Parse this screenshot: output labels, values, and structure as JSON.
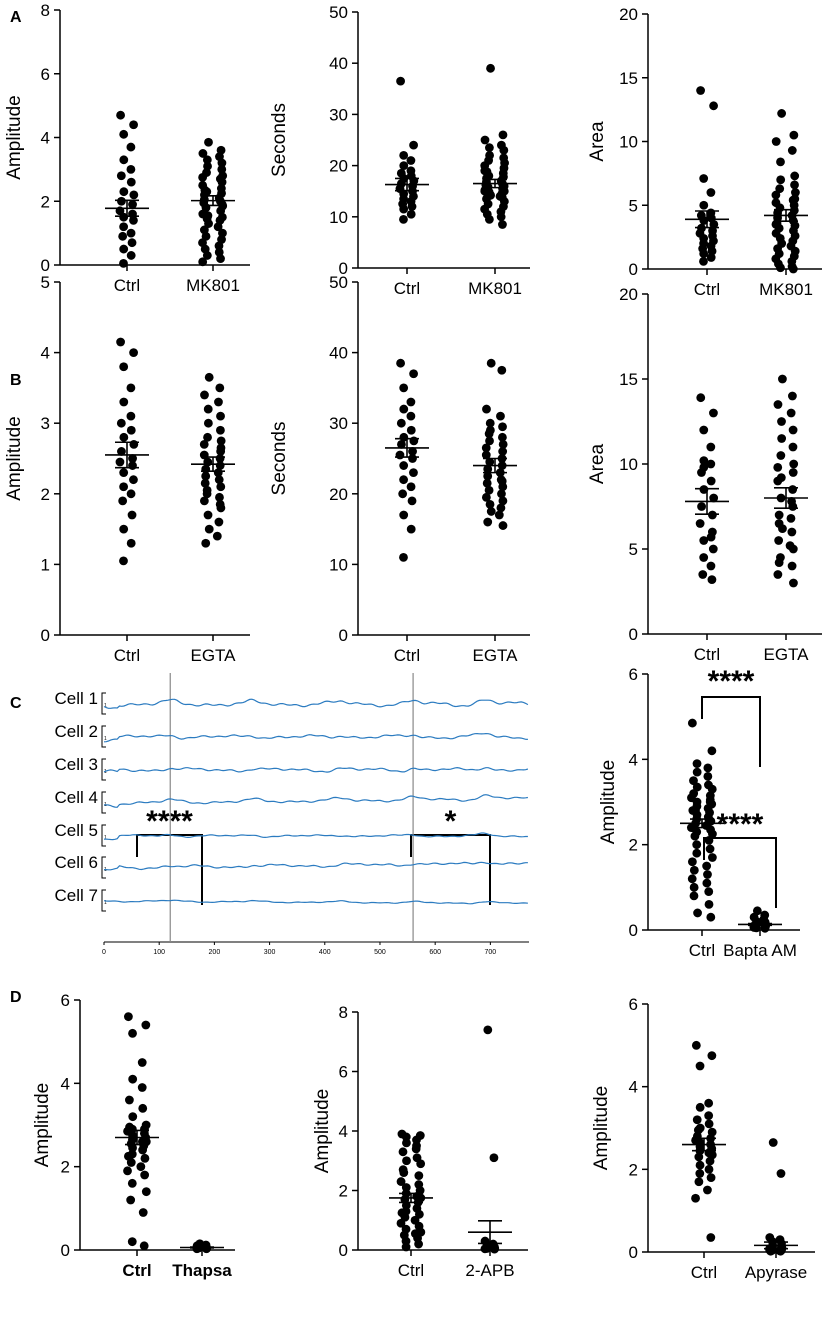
{
  "chart_data": [
    {
      "id": "A1",
      "panel_label": "A",
      "type": "scatter",
      "ylabel": "Amplitude",
      "ylim": [
        0,
        8
      ],
      "yticks": [
        0,
        2,
        4,
        6,
        8
      ],
      "categories": [
        "Ctrl",
        "MK801"
      ],
      "series": [
        {
          "name": "Ctrl",
          "mean": 1.78,
          "sem": 0.25,
          "values": [
            4.7,
            4.4,
            4.1,
            3.7,
            3.3,
            3.0,
            2.8,
            2.6,
            2.3,
            2.2,
            2.0,
            1.9,
            1.7,
            1.6,
            1.5,
            1.4,
            1.2,
            1.0,
            0.9,
            0.7,
            0.5,
            0.3,
            0.05
          ]
        },
        {
          "name": "MK801",
          "mean": 2.02,
          "sem": 0.15,
          "values": [
            3.85,
            3.6,
            3.5,
            3.4,
            3.3,
            3.2,
            3.1,
            3.0,
            2.9,
            2.8,
            2.75,
            2.6,
            2.5,
            2.4,
            2.3,
            2.25,
            2.2,
            2.1,
            2.05,
            2.0,
            1.95,
            1.9,
            1.8,
            1.7,
            1.6,
            1.5,
            1.45,
            1.4,
            1.3,
            1.2,
            1.1,
            1.0,
            0.9,
            0.8,
            0.7,
            0.6,
            0.5,
            0.4,
            0.3,
            0.2,
            0.1,
            2.7,
            2.35,
            1.85,
            1.55
          ]
        }
      ]
    },
    {
      "id": "A2",
      "panel_label": "",
      "type": "scatter",
      "ylabel": "Seconds",
      "ylim": [
        0,
        50
      ],
      "yticks": [
        0,
        10,
        20,
        30,
        40,
        50
      ],
      "categories": [
        "Ctrl",
        "MK801"
      ],
      "series": [
        {
          "name": "Ctrl",
          "mean": 16.3,
          "sem": 1.2,
          "values": [
            36.5,
            24.0,
            22.0,
            21.0,
            20.0,
            19.0,
            18.5,
            18.0,
            17.5,
            17.0,
            16.5,
            16.0,
            15.5,
            15.0,
            14.5,
            14.0,
            13.5,
            13.0,
            12.5,
            12.0,
            11.5,
            10.5,
            9.5
          ]
        },
        {
          "name": "MK801",
          "mean": 16.5,
          "sem": 0.8,
          "values": [
            39.0,
            26.0,
            25.0,
            24.0,
            23.5,
            23.0,
            22.0,
            21.5,
            21.0,
            20.5,
            20.0,
            19.5,
            19.0,
            18.5,
            18.0,
            17.8,
            17.5,
            17.0,
            16.8,
            16.5,
            16.2,
            16.0,
            15.8,
            15.5,
            15.2,
            15.0,
            14.8,
            14.5,
            14.2,
            14.0,
            13.5,
            13.0,
            12.5,
            12.0,
            11.5,
            11.0,
            10.5,
            10.0,
            9.5,
            8.5,
            15.0,
            13.8,
            18.8
          ]
        }
      ]
    },
    {
      "id": "A3",
      "panel_label": "",
      "type": "scatter",
      "ylabel": "Area",
      "ylim": [
        0,
        20
      ],
      "yticks": [
        0,
        5,
        10,
        15,
        20
      ],
      "categories": [
        "Ctrl",
        "MK801"
      ],
      "series": [
        {
          "name": "Ctrl",
          "mean": 3.9,
          "sem": 0.65,
          "values": [
            14.0,
            12.8,
            7.1,
            6.0,
            5.0,
            4.4,
            4.2,
            4.0,
            3.8,
            3.5,
            3.2,
            3.0,
            2.8,
            2.6,
            2.4,
            2.2,
            2.0,
            1.8,
            1.6,
            1.4,
            1.2,
            0.9,
            0.6
          ]
        },
        {
          "name": "MK801",
          "mean": 4.2,
          "sem": 0.45,
          "values": [
            12.2,
            10.5,
            10.0,
            9.3,
            8.4,
            7.3,
            7.0,
            6.6,
            6.3,
            6.0,
            5.8,
            5.5,
            5.2,
            5.0,
            4.8,
            4.6,
            4.4,
            4.2,
            4.0,
            3.8,
            3.6,
            3.4,
            3.2,
            3.0,
            2.8,
            2.6,
            2.4,
            2.2,
            2.0,
            1.8,
            1.6,
            1.4,
            1.2,
            1.0,
            0.8,
            0.6,
            0.4,
            0.2,
            0.1,
            0.0,
            3.5,
            5.4
          ]
        }
      ]
    },
    {
      "id": "B1",
      "panel_label": "B",
      "type": "scatter",
      "ylabel": "Amplitude",
      "ylim": [
        0,
        5
      ],
      "yticks": [
        0,
        1,
        2,
        3,
        4,
        5
      ],
      "categories": [
        "Ctrl",
        "EGTA"
      ],
      "series": [
        {
          "name": "Ctrl",
          "mean": 2.55,
          "sem": 0.18,
          "values": [
            4.15,
            4.0,
            3.8,
            3.5,
            3.3,
            3.1,
            3.0,
            2.9,
            2.8,
            2.7,
            2.6,
            2.5,
            2.45,
            2.4,
            2.3,
            2.2,
            2.1,
            2.0,
            1.9,
            1.7,
            1.5,
            1.3,
            1.05
          ]
        },
        {
          "name": "EGTA",
          "mean": 2.42,
          "sem": 0.1,
          "values": [
            3.65,
            3.5,
            3.4,
            3.3,
            3.2,
            3.1,
            3.0,
            2.9,
            2.8,
            2.75,
            2.7,
            2.6,
            2.55,
            2.5,
            2.45,
            2.4,
            2.35,
            2.3,
            2.25,
            2.2,
            2.15,
            2.1,
            2.0,
            1.95,
            1.9,
            1.8,
            1.7,
            1.6,
            1.5,
            1.4,
            1.3,
            2.65,
            2.05,
            1.85
          ]
        }
      ]
    },
    {
      "id": "B2",
      "panel_label": "",
      "type": "scatter",
      "ylabel": "Seconds",
      "ylim": [
        0,
        50
      ],
      "yticks": [
        0,
        10,
        20,
        30,
        40,
        50
      ],
      "categories": [
        "Ctrl",
        "EGTA"
      ],
      "series": [
        {
          "name": "Ctrl",
          "mean": 26.5,
          "sem": 1.3,
          "values": [
            38.5,
            37.0,
            35.0,
            33.0,
            32.0,
            31.0,
            30.0,
            29.0,
            28.0,
            27.5,
            27.0,
            26.0,
            25.5,
            25.0,
            24.0,
            23.0,
            22.0,
            21.0,
            20.0,
            19.0,
            17.0,
            15.0,
            11.0
          ]
        },
        {
          "name": "EGTA",
          "mean": 24.0,
          "sem": 1.0,
          "values": [
            38.5,
            37.5,
            32.0,
            31.0,
            30.0,
            29.5,
            29.0,
            28.0,
            27.5,
            27.0,
            26.5,
            26.0,
            25.5,
            25.0,
            24.5,
            24.0,
            23.5,
            23.0,
            22.5,
            22.0,
            21.5,
            21.0,
            20.5,
            20.0,
            19.5,
            19.0,
            18.5,
            18.0,
            17.5,
            17.0,
            16.0,
            15.5,
            28.5,
            21.8
          ]
        }
      ]
    },
    {
      "id": "B3",
      "panel_label": "",
      "type": "scatter",
      "ylabel": "Area",
      "ylim": [
        0,
        20
      ],
      "yticks": [
        0,
        5,
        10,
        15,
        20
      ],
      "categories": [
        "Ctrl",
        "EGTA"
      ],
      "series": [
        {
          "name": "Ctrl",
          "mean": 7.8,
          "sem": 0.75,
          "values": [
            13.9,
            13.0,
            12.0,
            11.0,
            10.2,
            10.0,
            9.5,
            9.0,
            8.5,
            8.0,
            7.5,
            7.0,
            6.5,
            6.0,
            5.5,
            5.0,
            4.5,
            4.0,
            3.5,
            3.2,
            9.8,
            5.7
          ]
        },
        {
          "name": "EGTA",
          "mean": 8.0,
          "sem": 0.6,
          "values": [
            15.0,
            14.0,
            13.5,
            13.0,
            12.5,
            12.0,
            11.5,
            11.0,
            10.5,
            10.0,
            9.8,
            9.5,
            9.0,
            8.5,
            8.0,
            7.5,
            7.0,
            6.8,
            6.5,
            6.0,
            5.5,
            5.0,
            4.5,
            4.0,
            3.5,
            3.0,
            9.2,
            7.8,
            6.2,
            5.2,
            4.2
          ]
        }
      ]
    },
    {
      "id": "C2",
      "panel_label": "",
      "type": "scatter",
      "ylabel": "Amplitude",
      "ylim": [
        0,
        6
      ],
      "yticks": [
        0,
        2,
        4,
        6
      ],
      "categories": [
        "Ctrl",
        "Bapta AM"
      ],
      "significance": "****",
      "series": [
        {
          "name": "Ctrl",
          "mean": 2.5,
          "sem": 0.1,
          "values": [
            4.85,
            4.2,
            3.9,
            3.8,
            3.7,
            3.6,
            3.5,
            3.4,
            3.35,
            3.3,
            3.2,
            3.15,
            3.1,
            3.05,
            3.0,
            2.95,
            2.9,
            2.85,
            2.8,
            2.75,
            2.7,
            2.65,
            2.6,
            2.55,
            2.5,
            2.45,
            2.4,
            2.35,
            2.3,
            2.25,
            2.2,
            2.1,
            2.0,
            1.9,
            1.8,
            1.7,
            1.6,
            1.5,
            1.4,
            1.3,
            1.2,
            1.1,
            1.0,
            0.9,
            0.8,
            0.6,
            0.4,
            0.3,
            2.8,
            2.6,
            2.4,
            3.0
          ]
        },
        {
          "name": "Bapta AM",
          "mean": 0.13,
          "sem": 0.02,
          "values": [
            0.45,
            0.35,
            0.3,
            0.25,
            0.2,
            0.18,
            0.15,
            0.12,
            0.1,
            0.1,
            0.08,
            0.08,
            0.06,
            0.05,
            0.05,
            0.04,
            0.12,
            0.2
          ]
        }
      ]
    },
    {
      "id": "D1",
      "panel_label": "D",
      "type": "scatter",
      "ylabel": "Amplitude",
      "ylim": [
        0,
        6
      ],
      "yticks": [
        0,
        2,
        4,
        6
      ],
      "categories": [
        "Ctrl",
        "Thapsa"
      ],
      "significance": "****",
      "bold_categories": true,
      "series": [
        {
          "name": "Ctrl",
          "mean": 2.7,
          "sem": 0.17,
          "values": [
            5.6,
            5.4,
            5.2,
            4.5,
            4.1,
            3.9,
            3.6,
            3.4,
            3.2,
            3.0,
            2.95,
            2.9,
            2.85,
            2.8,
            2.75,
            2.7,
            2.65,
            2.6,
            2.55,
            2.5,
            2.45,
            2.4,
            2.3,
            2.2,
            2.1,
            2.0,
            1.9,
            1.8,
            1.6,
            1.4,
            1.2,
            0.9,
            0.2,
            0.1,
            2.9,
            2.6,
            2.25
          ]
        },
        {
          "name": "Thapsa",
          "mean": 0.06,
          "sem": 0.01,
          "values": [
            0.15,
            0.12,
            0.1,
            0.09,
            0.08,
            0.07,
            0.06,
            0.05,
            0.05,
            0.04,
            0.03,
            0.03
          ]
        }
      ]
    },
    {
      "id": "D2",
      "panel_label": "",
      "type": "scatter",
      "ylabel": "Amplitude",
      "ylim": [
        0,
        8
      ],
      "yticks": [
        0,
        2,
        4,
        6,
        8
      ],
      "categories": [
        "Ctrl",
        "2-APB"
      ],
      "significance": "*",
      "series": [
        {
          "name": "Ctrl",
          "mean": 1.75,
          "sem": 0.15,
          "values": [
            3.9,
            3.85,
            3.8,
            3.7,
            3.6,
            3.5,
            3.3,
            3.1,
            3.0,
            2.9,
            2.7,
            2.5,
            2.3,
            2.2,
            2.1,
            2.0,
            1.9,
            1.8,
            1.7,
            1.6,
            1.5,
            1.4,
            1.3,
            1.2,
            1.1,
            1.0,
            0.9,
            0.8,
            0.7,
            0.6,
            0.5,
            0.4,
            0.3,
            0.2,
            0.1,
            1.75,
            1.25,
            0.55,
            2.6,
            3.4
          ]
        },
        {
          "name": "2-APB",
          "mean": 0.6,
          "sem": 0.38,
          "values": [
            7.4,
            3.1,
            0.3,
            0.2,
            0.15,
            0.1,
            0.1,
            0.08,
            0.05,
            0.05,
            0.04,
            0.03
          ]
        }
      ]
    },
    {
      "id": "D3",
      "panel_label": "",
      "type": "scatter",
      "ylabel": "Amplitude",
      "ylim": [
        0,
        6
      ],
      "yticks": [
        0,
        2,
        4,
        6
      ],
      "categories": [
        "Ctrl",
        "Apyrase"
      ],
      "significance": "****",
      "series": [
        {
          "name": "Ctrl",
          "mean": 2.6,
          "sem": 0.15,
          "values": [
            5.0,
            4.75,
            4.5,
            3.6,
            3.5,
            3.3,
            3.2,
            3.1,
            3.0,
            2.9,
            2.8,
            2.75,
            2.7,
            2.6,
            2.55,
            2.5,
            2.45,
            2.4,
            2.3,
            2.2,
            2.1,
            2.0,
            1.9,
            1.8,
            1.7,
            1.5,
            1.3,
            0.35,
            2.65,
            2.35,
            2.95
          ]
        },
        {
          "name": "Apyrase",
          "mean": 0.16,
          "sem": 0.08,
          "values": [
            2.65,
            1.9,
            0.35,
            0.3,
            0.25,
            0.2,
            0.15,
            0.12,
            0.1,
            0.1,
            0.08,
            0.06,
            0.05,
            0.05,
            0.04,
            0.04,
            0.03,
            0.03,
            0.02,
            0.02
          ]
        }
      ]
    },
    {
      "id": "C1",
      "panel_label": "C",
      "type": "line",
      "cells": [
        "Cell 1",
        "Cell 2",
        "Cell 3",
        "Cell 4",
        "Cell 5",
        "Cell 6",
        "Cell 7"
      ],
      "scale_label": "1",
      "xlim": [
        0,
        770
      ],
      "xticks": [
        0,
        100,
        200,
        300,
        400,
        500,
        600,
        700
      ],
      "markers": [
        120,
        560
      ],
      "line_color": "#2b7bc0"
    }
  ]
}
